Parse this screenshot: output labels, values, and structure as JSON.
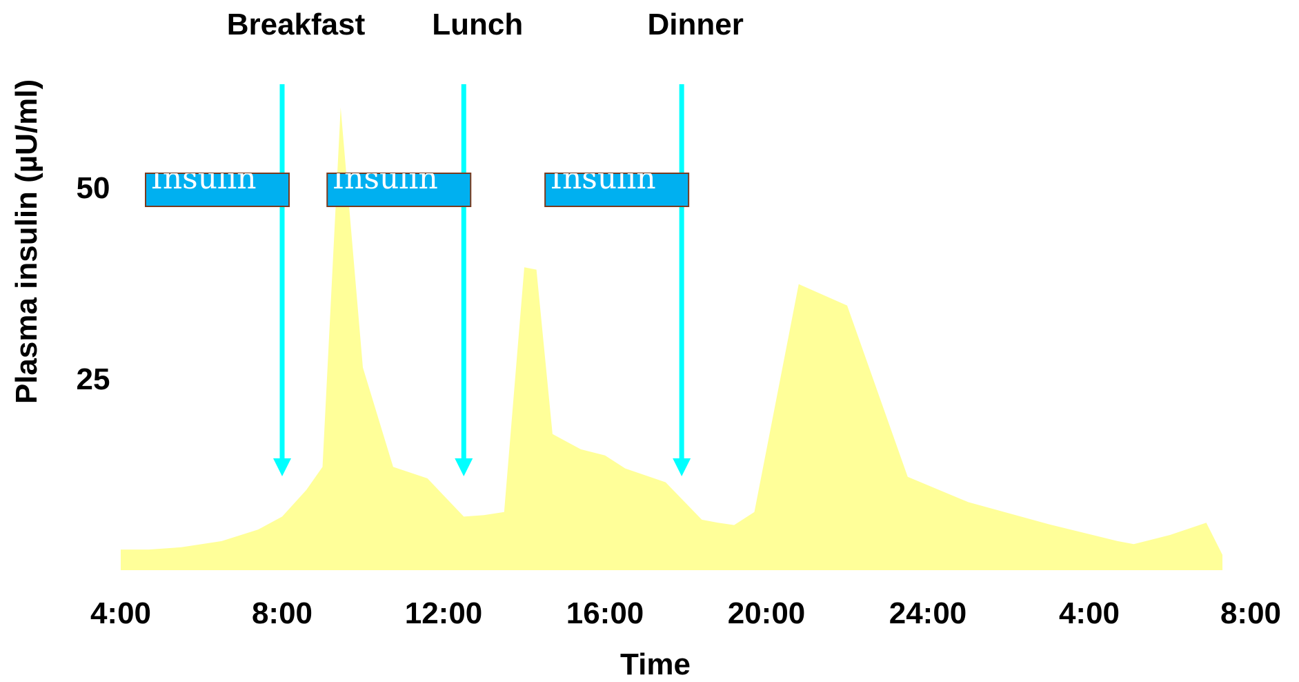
{
  "chart_data": {
    "type": "area",
    "xlabel": "Time",
    "ylabel": "Plasma insulin (µU/ml)",
    "x_tick_labels": [
      "4:00",
      "8:00",
      "12:00",
      "16:00",
      "20:00",
      "24:00",
      "4:00",
      "8:00"
    ],
    "y_ticks": [
      25,
      50
    ],
    "y_tick_labels": [
      "25",
      "50"
    ],
    "ylim": [
      0,
      60
    ],
    "x_unit": "hours after 4:00",
    "xlim": [
      0,
      28
    ],
    "fill_color": "#ffff99",
    "arrow_color": "#00ffff",
    "box_color": "#00b0f0",
    "box_border_color": "#7b3a1e",
    "x": [
      0,
      0.7,
      1.5,
      2.5,
      3.4,
      4.0,
      4.6,
      5.0,
      5.45,
      6.0,
      6.75,
      7.6,
      8.5,
      9.0,
      9.5,
      10.0,
      10.3,
      10.7,
      11.4,
      12.0,
      12.5,
      13.5,
      14.4,
      14.8,
      15.2,
      15.7,
      16.8,
      18.0,
      19.5,
      21.0,
      23.0,
      24.7,
      25.1,
      26.0,
      26.9,
      27.3
    ],
    "values": [
      2.7,
      2.7,
      3.0,
      3.8,
      5.3,
      7.0,
      10.5,
      13.5,
      60.5,
      26.5,
      13.5,
      12.0,
      7.0,
      7.2,
      7.6,
      39.6,
      39.3,
      17.8,
      15.8,
      15.0,
      13.3,
      11.5,
      6.6,
      6.2,
      5.9,
      7.6,
      37.4,
      34.6,
      12.2,
      8.9,
      6.0,
      3.8,
      3.4,
      4.6,
      6.2,
      2.0
    ],
    "meals": [
      {
        "label": "Breakfast",
        "time": 4.0,
        "box_text": "Insulin"
      },
      {
        "label": "Lunch",
        "time": 8.5,
        "box_text": "Insulin"
      },
      {
        "label": "Dinner",
        "time": 13.9,
        "box_text": "Insulin"
      }
    ]
  }
}
